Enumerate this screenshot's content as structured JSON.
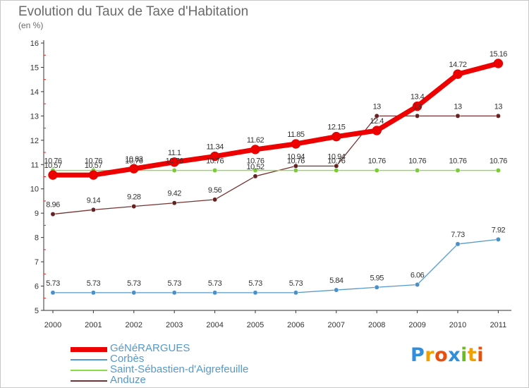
{
  "chart_data": {
    "type": "line",
    "title": "Evolution du Taux de Taxe d'Habitation",
    "subtitle": "(en %)",
    "x": [
      "2000",
      "2001",
      "2002",
      "2003",
      "2004",
      "2005",
      "2006",
      "2007",
      "2008",
      "2009",
      "2010",
      "2011"
    ],
    "ylim": [
      5,
      16
    ],
    "yticks": [
      "5",
      "6",
      "7",
      "8",
      "9",
      "10",
      "11",
      "12",
      "13",
      "14",
      "15",
      "16"
    ],
    "grid": false,
    "legend_position": "bottom-left",
    "series": [
      {
        "name": "GéNéRARGUES",
        "color": "#ee0000",
        "weight": "thick",
        "values": [
          10.57,
          10.57,
          10.83,
          11.1,
          11.34,
          11.62,
          11.85,
          12.15,
          12.4,
          13.4,
          14.72,
          15.16
        ],
        "labels": [
          "10.57",
          "10.57",
          "10.83",
          "11.1",
          "11.34",
          "11.62",
          "11.85",
          "12.15",
          "12.4",
          "13.4",
          "14.72",
          "15.16"
        ]
      },
      {
        "name": "Corbès",
        "color": "#5599cc",
        "weight": "thin",
        "values": [
          5.73,
          5.73,
          5.73,
          5.73,
          5.73,
          5.73,
          5.73,
          5.84,
          5.95,
          6.06,
          7.73,
          7.92
        ],
        "labels": [
          "5.73",
          "5.73",
          "5.73",
          "5.73",
          "5.73",
          "5.73",
          "5.73",
          "5.84",
          "5.95",
          "6.06",
          "7.73",
          "7.92"
        ]
      },
      {
        "name": "Saint-Sébastien-d'Aigrefeuille",
        "color": "#88dd44",
        "weight": "thin",
        "values": [
          10.76,
          10.76,
          10.76,
          10.76,
          10.76,
          10.76,
          10.76,
          10.76,
          10.76,
          10.76,
          10.76,
          10.76
        ],
        "labels": [
          "10.76",
          "10.76",
          "10.76",
          "10.76",
          "10.76",
          "10.76",
          "10.76",
          "10.76",
          "10.76",
          "10.76",
          "10.76",
          "10.76"
        ]
      },
      {
        "name": "Anduze",
        "color": "#773333",
        "weight": "thin",
        "values": [
          8.96,
          9.14,
          9.28,
          9.42,
          9.56,
          10.52,
          10.94,
          10.94,
          13,
          13,
          13,
          13
        ],
        "labels": [
          "8.96",
          "9.14",
          "9.28",
          "9.42",
          "9.56",
          "10.52",
          "10.94",
          "10.94",
          "13",
          "13",
          "13",
          "13"
        ]
      }
    ]
  },
  "logo": {
    "letters": [
      "P",
      "r",
      "o",
      "x",
      "i",
      "t",
      "i"
    ]
  }
}
